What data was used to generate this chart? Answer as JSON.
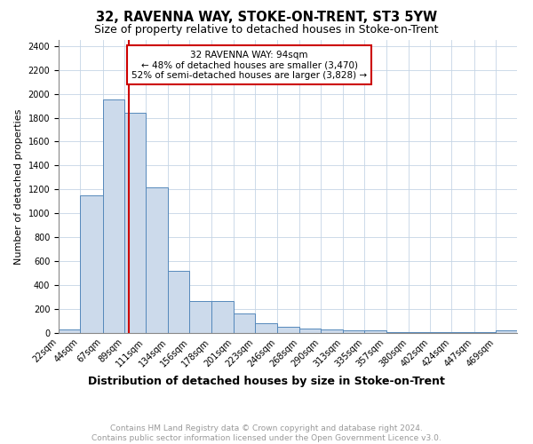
{
  "title": "32, RAVENNA WAY, STOKE-ON-TRENT, ST3 5YW",
  "subtitle": "Size of property relative to detached houses in Stoke-on-Trent",
  "xlabel": "Distribution of detached houses by size in Stoke-on-Trent",
  "ylabel": "Number of detached properties",
  "bin_labels": [
    "22sqm",
    "44sqm",
    "67sqm",
    "89sqm",
    "111sqm",
    "134sqm",
    "156sqm",
    "178sqm",
    "201sqm",
    "223sqm",
    "246sqm",
    "268sqm",
    "290sqm",
    "313sqm",
    "335sqm",
    "357sqm",
    "380sqm",
    "402sqm",
    "424sqm",
    "447sqm",
    "469sqm"
  ],
  "bin_edges": [
    22,
    44,
    67,
    89,
    111,
    134,
    156,
    178,
    201,
    223,
    246,
    268,
    290,
    313,
    335,
    357,
    380,
    402,
    424,
    447,
    469,
    491
  ],
  "heights": [
    30,
    1150,
    1950,
    1840,
    1220,
    520,
    270,
    265,
    160,
    85,
    50,
    40,
    30,
    20,
    20,
    10,
    10,
    10,
    5,
    5,
    20
  ],
  "bar_color": "#ccdaeb",
  "bar_edgecolor": "#5588bb",
  "property_size": 94,
  "vline_color": "#cc0000",
  "annotation_line1": "32 RAVENNA WAY: 94sqm",
  "annotation_line2": "← 48% of detached houses are smaller (3,470)",
  "annotation_line3": "52% of semi-detached houses are larger (3,828) →",
  "annotation_box_color": "#ffffff",
  "annotation_border_color": "#cc0000",
  "ylim": [
    0,
    2450
  ],
  "yticks": [
    0,
    200,
    400,
    600,
    800,
    1000,
    1200,
    1400,
    1600,
    1800,
    2000,
    2200,
    2400
  ],
  "footer_line1": "Contains HM Land Registry data © Crown copyright and database right 2024.",
  "footer_line2": "Contains public sector information licensed under the Open Government Licence v3.0.",
  "title_fontsize": 10.5,
  "subtitle_fontsize": 9,
  "xlabel_fontsize": 9,
  "ylabel_fontsize": 8,
  "tick_fontsize": 7,
  "annotation_fontsize": 7.5,
  "footer_fontsize": 6.5,
  "grid_color": "#c5d5e5"
}
